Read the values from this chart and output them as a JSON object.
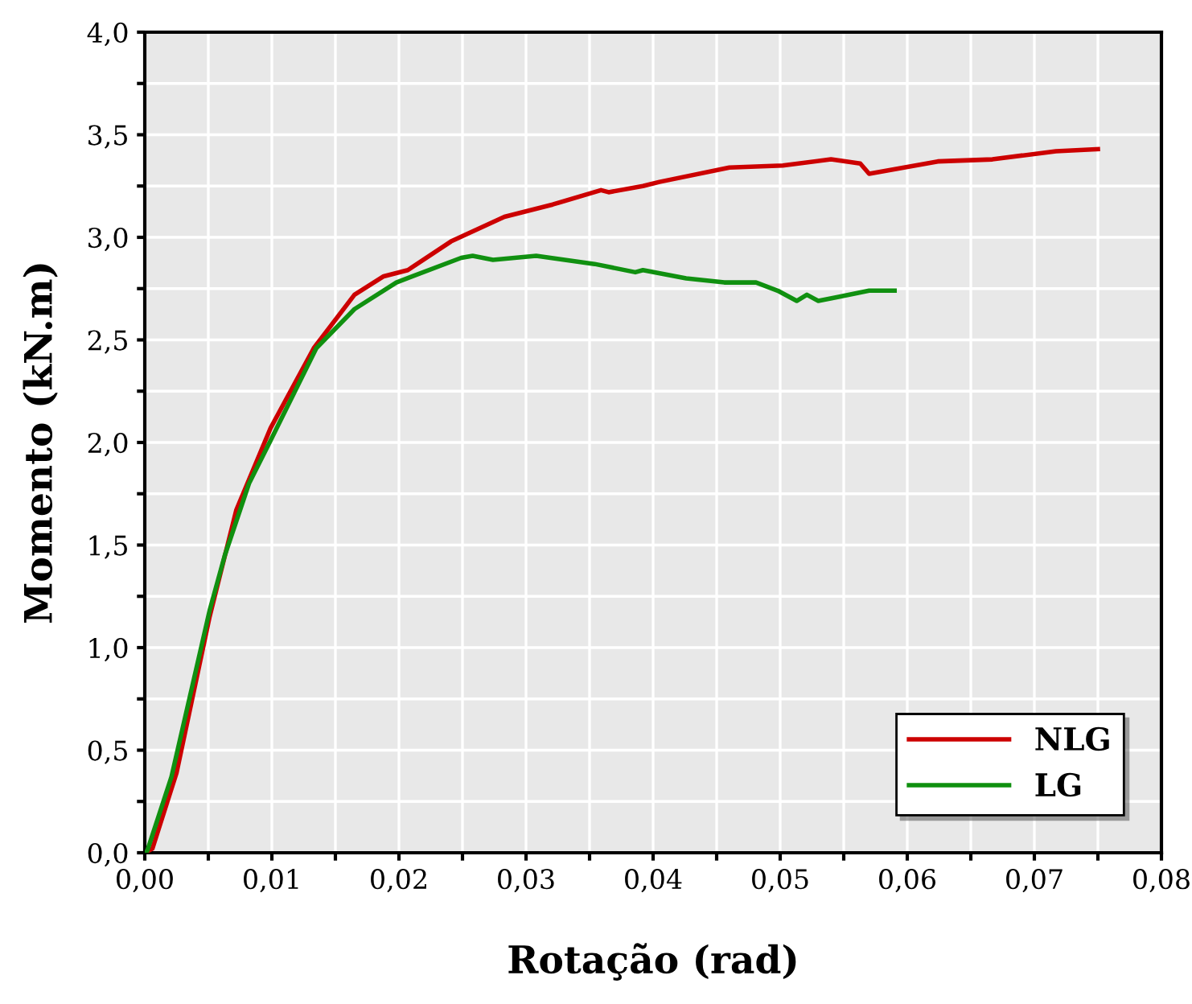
{
  "chart_data": {
    "type": "line",
    "xlabel": "Rotação (rad)",
    "ylabel": "Momento (kN.m)",
    "xlim": [
      0,
      0.08
    ],
    "ylim": [
      0,
      4.0
    ],
    "xticks": [
      {
        "value": 0,
        "label": "0,00"
      },
      {
        "value": 0.005,
        "label": null
      },
      {
        "value": 0.01,
        "label": "0,01"
      },
      {
        "value": 0.015,
        "label": null
      },
      {
        "value": 0.02,
        "label": "0,02"
      },
      {
        "value": 0.025,
        "label": null
      },
      {
        "value": 0.03,
        "label": "0,03"
      },
      {
        "value": 0.035,
        "label": null
      },
      {
        "value": 0.04,
        "label": "0,04"
      },
      {
        "value": 0.045,
        "label": null
      },
      {
        "value": 0.05,
        "label": "0,05"
      },
      {
        "value": 0.055,
        "label": null
      },
      {
        "value": 0.06,
        "label": "0,06"
      },
      {
        "value": 0.065,
        "label": null
      },
      {
        "value": 0.07,
        "label": "0,07"
      },
      {
        "value": 0.075,
        "label": null
      },
      {
        "value": 0.08,
        "label": "0,08"
      }
    ],
    "yticks": [
      {
        "value": 0,
        "label": "0,0"
      },
      {
        "value": 0.25,
        "label": null
      },
      {
        "value": 0.5,
        "label": "0,5"
      },
      {
        "value": 0.75,
        "label": null
      },
      {
        "value": 1.0,
        "label": "1,0"
      },
      {
        "value": 1.25,
        "label": null
      },
      {
        "value": 1.5,
        "label": "1,5"
      },
      {
        "value": 1.75,
        "label": null
      },
      {
        "value": 2.0,
        "label": "2,0"
      },
      {
        "value": 2.25,
        "label": null
      },
      {
        "value": 2.5,
        "label": "2,5"
      },
      {
        "value": 2.75,
        "label": null
      },
      {
        "value": 3.0,
        "label": "3,0"
      },
      {
        "value": 3.25,
        "label": null
      },
      {
        "value": 3.5,
        "label": "3,5"
      },
      {
        "value": 3.75,
        "label": null
      },
      {
        "value": 4.0,
        "label": "4,0"
      }
    ],
    "grid": true,
    "legend": "bottom right",
    "line_style": "solid",
    "marker": "none",
    "series": [
      {
        "name": "NLG",
        "color": "#cc0000",
        "x": [
          0,
          0.0006,
          0.0025,
          0.0051,
          0.0072,
          0.0099,
          0.0133,
          0.0165,
          0.0188,
          0.0207,
          0.0241,
          0.0283,
          0.0321,
          0.0359,
          0.0365,
          0.0392,
          0.0405,
          0.046,
          0.0502,
          0.054,
          0.0563,
          0.057,
          0.0624,
          0.0667,
          0.0717,
          0.075
        ],
        "values": [
          0,
          0.02,
          0.39,
          1.15,
          1.67,
          2.07,
          2.46,
          2.72,
          2.81,
          2.84,
          2.98,
          3.1,
          3.16,
          3.23,
          3.22,
          3.25,
          3.27,
          3.34,
          3.35,
          3.38,
          3.36,
          3.31,
          3.37,
          3.38,
          3.42,
          3.43
        ]
      },
      {
        "name": "LG",
        "color": "#109010",
        "x": [
          0,
          0.0002,
          0.0021,
          0.0051,
          0.0063,
          0.0082,
          0.0099,
          0.0135,
          0.0165,
          0.0198,
          0.0249,
          0.0258,
          0.0274,
          0.0308,
          0.0354,
          0.0386,
          0.0392,
          0.0426,
          0.0456,
          0.0481,
          0.0498,
          0.0513,
          0.0521,
          0.053,
          0.0546,
          0.057,
          0.059
        ],
        "values": [
          0,
          0.01,
          0.37,
          1.18,
          1.45,
          1.8,
          2.01,
          2.46,
          2.65,
          2.78,
          2.9,
          2.91,
          2.89,
          2.91,
          2.87,
          2.83,
          2.84,
          2.8,
          2.78,
          2.78,
          2.74,
          2.69,
          2.72,
          2.69,
          2.71,
          2.74,
          2.74
        ]
      }
    ]
  }
}
